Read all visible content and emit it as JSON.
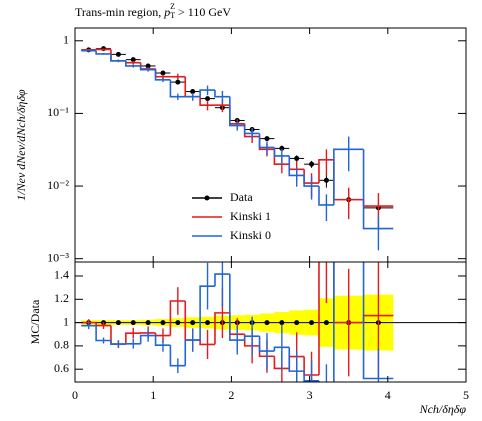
{
  "chart_data": {
    "type": "histogram",
    "title": {
      "text": "Trans-min region, ",
      "var": "p",
      "sub": "T",
      "sup": "Z",
      "rest": " > 110 GeV"
    },
    "ylabel": "1/Nev dNev/dNch/δηδφ",
    "xlabel": "Nch/δηδφ",
    "ratio_ylabel": "MC/Data",
    "bins": [
      0.08,
      0.27,
      0.46,
      0.65,
      0.84,
      1.03,
      1.22,
      1.41,
      1.6,
      1.79,
      1.98,
      2.17,
      2.36,
      2.55,
      2.74,
      2.93,
      3.12,
      3.31,
      3.69,
      4.07
    ],
    "series": [
      {
        "name": "Data",
        "color": "#000000",
        "values": [
          0.75,
          0.78,
          0.65,
          0.55,
          0.45,
          0.36,
          0.27,
          0.2,
          0.16,
          0.12,
          0.08,
          0.06,
          0.045,
          0.033,
          0.024,
          0.02,
          0.012,
          0.0065,
          0.005
        ],
        "errors": [
          0.015,
          0.016,
          0.013,
          0.011,
          0.011,
          0.011,
          0.01,
          0.009,
          0.008,
          0.007,
          0.005,
          0.004,
          0.0035,
          0.003,
          0.0025,
          0.0022,
          0.0025,
          0.0015,
          0.0012
        ]
      },
      {
        "name": "Kinski 1",
        "color": "#e41a1c",
        "values": [
          0.75,
          0.76,
          0.53,
          0.5,
          0.41,
          0.32,
          0.32,
          0.17,
          0.13,
          0.13,
          0.072,
          0.048,
          0.032,
          0.02,
          0.017,
          0.011,
          0.023,
          0.0065,
          0.0053
        ],
        "errors": [
          0.022,
          0.023,
          0.021,
          0.025,
          0.025,
          0.022,
          0.032,
          0.02,
          0.02,
          0.026,
          0.011,
          0.009,
          0.0064,
          0.005,
          0.005,
          0.004,
          0.009,
          0.003,
          0.0027
        ]
      },
      {
        "name": "Kinski 0",
        "color": "#2166d8",
        "values": [
          0.73,
          0.66,
          0.53,
          0.45,
          0.4,
          0.29,
          0.17,
          0.17,
          0.21,
          0.17,
          0.068,
          0.053,
          0.034,
          0.026,
          0.014,
          0.01,
          0.0055,
          0.032,
          0.0026
        ],
        "errors": [
          0.022,
          0.02,
          0.021,
          0.023,
          0.024,
          0.02,
          0.017,
          0.02,
          0.032,
          0.034,
          0.01,
          0.01,
          0.007,
          0.0065,
          0.0042,
          0.0035,
          0.0022,
          0.016,
          0.0013
        ]
      }
    ],
    "log_y": true,
    "xlim": [
      0,
      5
    ],
    "xticks": [
      0,
      1,
      2,
      3,
      4,
      5
    ],
    "ylim": [
      0.0009,
      1.5
    ],
    "yticks": [
      {
        "value": 1,
        "label": "1"
      },
      {
        "value": 0.1,
        "label": "10⁻¹"
      },
      {
        "value": 0.01,
        "label": "10⁻²"
      },
      {
        "value": 0.001,
        "label": "10⁻³"
      }
    ],
    "ratio_ylim": [
      0.49,
      1.52
    ],
    "ratio_yticks": [
      0.6,
      0.8,
      1,
      1.2,
      1.4
    ],
    "band_color": "#ffff00"
  }
}
